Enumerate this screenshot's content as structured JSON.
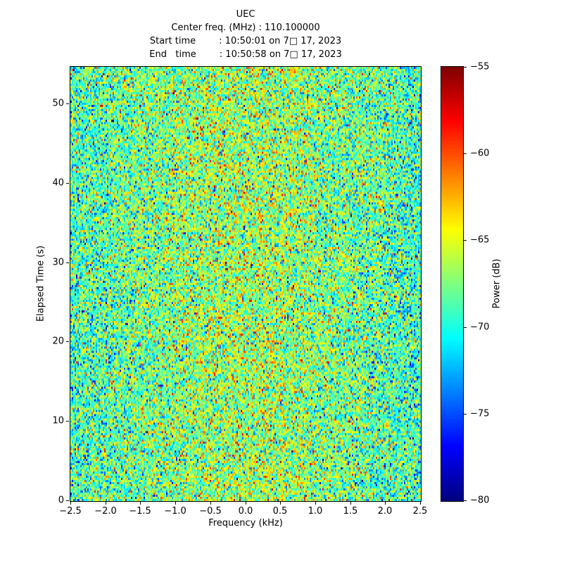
{
  "colors": {
    "background": "#ffffff",
    "axis": "#000000",
    "text": "#000000"
  },
  "title": {
    "lines": [
      "UEC",
      "Center freq. (MHz) : 110.100000",
      "Start time        : 10:50:01 on 7□ 17, 2023",
      "End   time        : 10:50:58 on 7□ 17, 2023"
    ]
  },
  "chart_data": {
    "type": "heatmap",
    "title": "UEC",
    "header_lines": [
      "UEC",
      "Center freq. (MHz) : 110.100000",
      "Start time        : 10:50:01 on 7□ 17, 2023",
      "End   time        : 10:50:58 on 7□ 17, 2023"
    ],
    "xlabel": "Frequency (kHz)",
    "ylabel": "Elapsed Time (s)",
    "xlim": [
      -2.5,
      2.5
    ],
    "ylim": [
      0,
      54.6
    ],
    "grid": false,
    "xticks": {
      "values": [
        -2.5,
        -2.0,
        -1.5,
        -1.0,
        -0.5,
        0.0,
        0.5,
        1.0,
        1.5,
        2.0,
        2.5
      ],
      "labels": [
        "−2.5",
        "−2.0",
        "−1.5",
        "−1.0",
        "−0.5",
        "0.0",
        "0.5",
        "1.0",
        "1.5",
        "2.0",
        "2.5"
      ]
    },
    "yticks": {
      "values": [
        0,
        10,
        20,
        30,
        40,
        50
      ],
      "labels": [
        "0",
        "10",
        "20",
        "30",
        "40",
        "50"
      ]
    },
    "colorbar": {
      "label": "Power (dB)",
      "vmin": -80,
      "vmax": -55,
      "colormap": "jet",
      "tick_values": [
        -55,
        -60,
        -65,
        -70,
        -75,
        -80
      ],
      "tick_labels": [
        "−55",
        "−60",
        "−65",
        "−70",
        "−75",
        "−80"
      ]
    },
    "heatmap_model": {
      "description": "broadband random noise spectrogram; teal/green background, warmer (yellow-orange) near center frequency, cooler (blue) speckles throughout",
      "cols": 249,
      "rows": 205,
      "mean_db_edges": -69.8,
      "mean_db_center": -66.6,
      "center_width_frac": 0.3,
      "sigma_db": 3.4,
      "seed": 42
    }
  }
}
